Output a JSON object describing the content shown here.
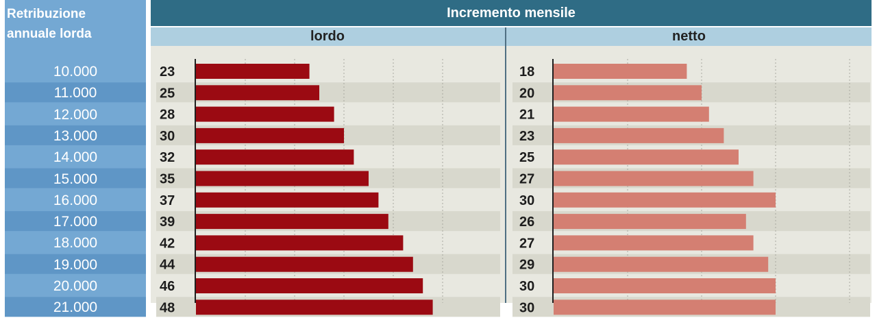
{
  "left_header": {
    "line1": "Retribuzione",
    "line2": "annuale lorda"
  },
  "header": {
    "title": "Incremento mensile"
  },
  "subheaders": {
    "lordo": "lordo",
    "netto": "netto"
  },
  "colors": {
    "lordo": "#9b0a12",
    "netto": "#d47f72",
    "header": "#2f6c85",
    "sidebar": "#74a8d3"
  },
  "chart_data": {
    "type": "bar",
    "orientation": "horizontal",
    "categories": [
      "10.000",
      "11.000",
      "12.000",
      "13.000",
      "14.000",
      "15.000",
      "16.000",
      "17.000",
      "18.000",
      "19.000",
      "20.000",
      "21.000"
    ],
    "series": [
      {
        "name": "lordo",
        "values": [
          23,
          25,
          28,
          30,
          32,
          35,
          37,
          39,
          42,
          44,
          46,
          48
        ]
      },
      {
        "name": "netto",
        "values": [
          18,
          20,
          21,
          23,
          25,
          27,
          30,
          26,
          27,
          29,
          30,
          30
        ]
      }
    ],
    "title": "Incremento mensile",
    "ylabel": "Retribuzione annuale lorda",
    "grid": true
  }
}
